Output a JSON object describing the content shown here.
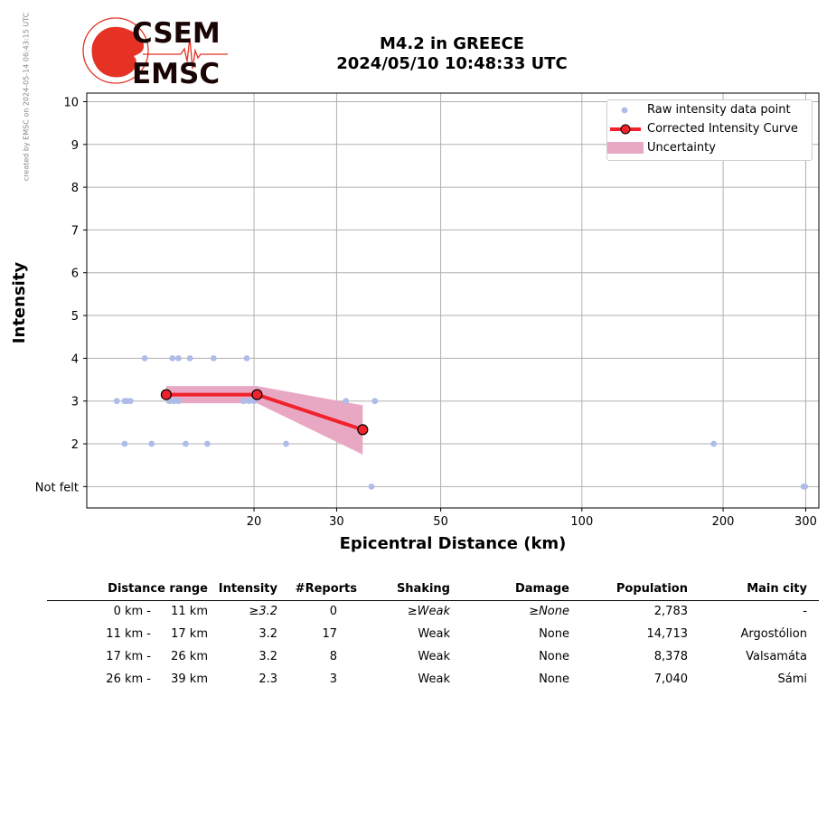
{
  "watermark": "created by EMSC on 2024-05-14 06:43:15 UTC",
  "logo": {
    "line1": "CSEM",
    "line2": "EMSC"
  },
  "title": {
    "line1": "M4.2 in GREECE",
    "line2": "2024/05/10 10:48:33 UTC"
  },
  "colors": {
    "raw_points": "#aebde8",
    "curve": "#f0222b",
    "uncertainty": "#e8a8c4",
    "logo_red": "#e53224"
  },
  "chart_data": {
    "type": "scatter",
    "xlabel": "Epicentral Distance (km)",
    "ylabel": "Intensity",
    "x_scale": "log",
    "xlim": [
      8.8,
      320
    ],
    "ylim": [
      0.5,
      10.2
    ],
    "x_ticks": [
      20,
      30,
      50,
      100,
      200,
      300
    ],
    "y_ticks": [
      1,
      2,
      3,
      4,
      5,
      6,
      7,
      8,
      9,
      10
    ],
    "y_tick_labels": [
      "Not felt",
      "2",
      "3",
      "4",
      "5",
      "6",
      "7",
      "8",
      "9",
      "10"
    ],
    "grid": true,
    "legend_position": "top-right",
    "legend": [
      "Raw intensity data point",
      "Corrected Intensity Curve",
      "Uncertainty"
    ],
    "series": [
      {
        "name": "Raw intensity data point",
        "type": "scatter",
        "points": [
          [
            10.2,
            3
          ],
          [
            10.6,
            3
          ],
          [
            10.7,
            3
          ],
          [
            10.9,
            3
          ],
          [
            10.6,
            2
          ],
          [
            12.1,
            2
          ],
          [
            11.7,
            4
          ],
          [
            13.4,
            4
          ],
          [
            13.8,
            4
          ],
          [
            14.6,
            4
          ],
          [
            16.4,
            4
          ],
          [
            19.3,
            4
          ],
          [
            13.2,
            3
          ],
          [
            13.5,
            3
          ],
          [
            13.8,
            3
          ],
          [
            19.0,
            3
          ],
          [
            19.5,
            3
          ],
          [
            20.0,
            3
          ],
          [
            14.3,
            2
          ],
          [
            15.9,
            2
          ],
          [
            23.4,
            2
          ],
          [
            31.4,
            3
          ],
          [
            36.2,
            3
          ],
          [
            35.6,
            1
          ],
          [
            191,
            2
          ],
          [
            297,
            1
          ],
          [
            299,
            1
          ]
        ]
      },
      {
        "name": "Corrected Intensity Curve",
        "type": "line",
        "points": [
          [
            13.0,
            3.15
          ],
          [
            20.3,
            3.15
          ],
          [
            34.1,
            2.33
          ]
        ]
      },
      {
        "name": "Uncertainty",
        "type": "area",
        "upper": [
          [
            13.0,
            3.35
          ],
          [
            20.3,
            3.35
          ],
          [
            34.1,
            2.9
          ]
        ],
        "lower": [
          [
            13.0,
            2.95
          ],
          [
            20.3,
            2.95
          ],
          [
            34.1,
            1.75
          ]
        ]
      }
    ]
  },
  "table": {
    "headers": [
      "Distance range",
      "Intensity",
      "#Reports",
      "Shaking",
      "Damage",
      "Population",
      "Main city"
    ],
    "rows": [
      {
        "from": "0 km -",
        "to": "11 km",
        "intensity": "≥3.2",
        "reports": "0",
        "shaking": "≥Weak",
        "damage": "≥None",
        "population": "2,783",
        "city": "-",
        "italic": true
      },
      {
        "from": "11 km -",
        "to": "17 km",
        "intensity": "3.2",
        "reports": "17",
        "shaking": "Weak",
        "damage": "None",
        "population": "14,713",
        "city": "Argostólion",
        "italic": false
      },
      {
        "from": "17 km -",
        "to": "26 km",
        "intensity": "3.2",
        "reports": "8",
        "shaking": "Weak",
        "damage": "None",
        "population": "8,378",
        "city": "Valsamáta",
        "italic": false
      },
      {
        "from": "26 km -",
        "to": "39 km",
        "intensity": "2.3",
        "reports": "3",
        "shaking": "Weak",
        "damage": "None",
        "population": "7,040",
        "city": "Sámi",
        "italic": false
      }
    ]
  }
}
